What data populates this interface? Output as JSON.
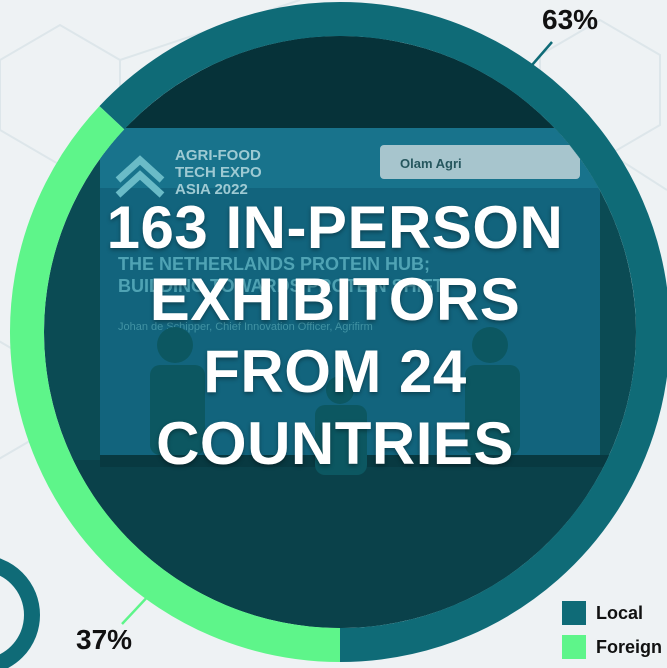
{
  "chart_data": {
    "type": "pie",
    "title": "163 IN-PERSON EXHIBITORS FROM 24 COUNTRIES",
    "title_lines": [
      "163 IN-PERSON",
      "EXHIBITORS",
      "FROM 24",
      "COUNTRIES"
    ],
    "slices": [
      {
        "name": "Local",
        "value": 63,
        "label": "63%",
        "color": "#0f6b77"
      },
      {
        "name": "Foreign",
        "value": 37,
        "label": "37%",
        "color": "#5ef58a"
      }
    ],
    "legend": "bottom-right"
  },
  "photo": {
    "stage_logo_line1": "AGRI-FOOD",
    "stage_logo_line2": "TECH EXPO",
    "stage_logo_line3": "ASIA 2022",
    "sponsor": "Olam Agri",
    "screen_title": "THE NETHERLANDS PROTEIN HUB;",
    "screen_subtitle": "BUILDING TOWARDS PROTEIN SHIFT",
    "speaker_line": "Johan de Schipper, Chief Innovation Officer, Agrifirm"
  },
  "colors": {
    "ring_local": "#0f6b77",
    "ring_foreign": "#5ef58a",
    "overlay": "#0c4f58"
  }
}
